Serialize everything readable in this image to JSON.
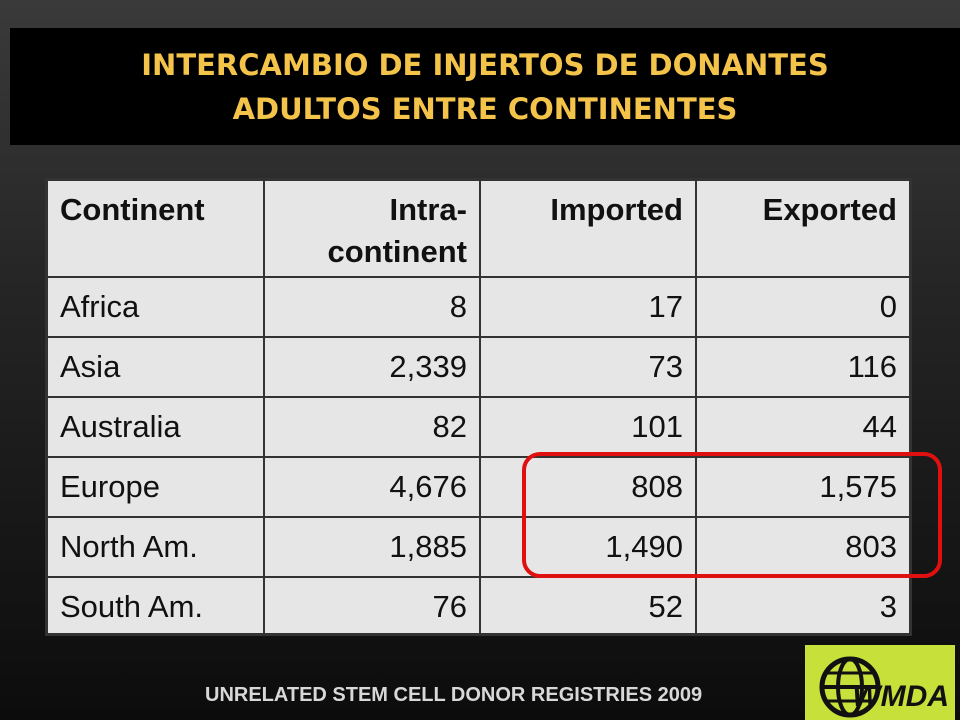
{
  "header": {
    "title_lines": [
      "INTERCAMBIO DE INJERTOS DE DONANTES",
      "ADULTOS ENTRE CONTINENTES"
    ]
  },
  "table": {
    "columns": [
      "Continent",
      "Intra-\ncontinent",
      "Imported",
      "Exported"
    ],
    "rows": [
      [
        "Africa",
        "8",
        "17",
        "0"
      ],
      [
        "Asia",
        "2,339",
        "73",
        "116"
      ],
      [
        "Australia",
        "82",
        "101",
        "44"
      ],
      [
        "Europe",
        "4,676",
        "808",
        "1,575"
      ],
      [
        "North Am.",
        "1,885",
        "1,490",
        "803"
      ],
      [
        "South Am.",
        "76",
        "52",
        "3"
      ]
    ]
  },
  "footer": {
    "source": "UNRELATED STEM CELL DONOR REGISTRIES 2009",
    "logo": "WMDA"
  }
}
